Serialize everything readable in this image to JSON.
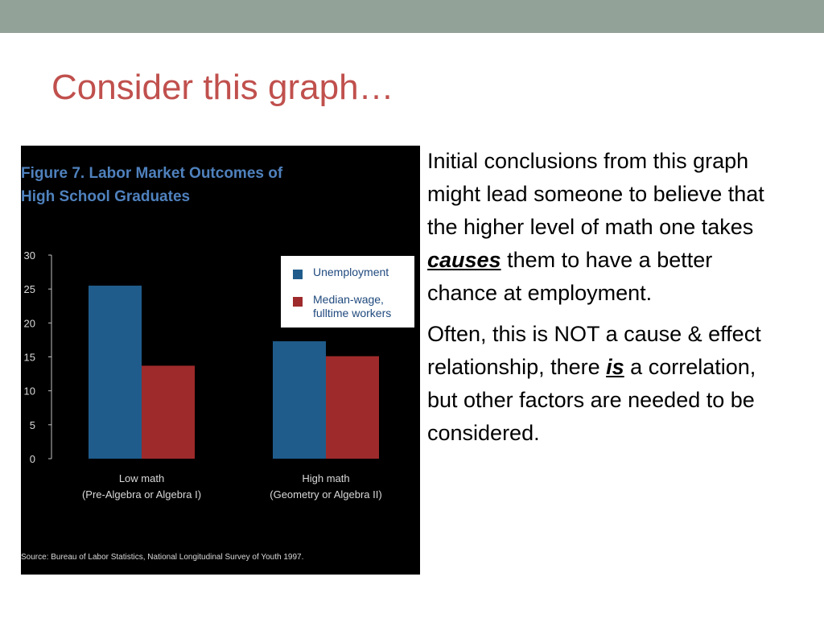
{
  "slide": {
    "title": "Consider this graph…",
    "accent_color": "#c0504d",
    "bar_color": "#93a299"
  },
  "body": {
    "p1_before": "Initial conclusions from this graph might lead someone to believe that the higher level of math one takes ",
    "p1_emph": "causes",
    "p1_after": " them to have a better chance at employment.",
    "p2_before": "Often, this is NOT a cause & effect relationship, there ",
    "p2_emph": "is",
    "p2_after": " a correlation, but other factors are needed to be considered."
  },
  "chart_data": {
    "type": "bar",
    "title_line1": "Figure 7. Labor Market Outcomes of",
    "title_line2": "High School  Graduates",
    "categories": [
      {
        "line1": "Low math",
        "line2": "(Pre-Algebra or Algebra I)"
      },
      {
        "line1": "High math",
        "line2": "(Geometry or Algebra II)"
      }
    ],
    "series": [
      {
        "name": "Unemployment",
        "color": "#1f5c8b",
        "values": [
          25.5,
          17.3
        ]
      },
      {
        "name": "Median-wage, fulltime workers",
        "color": "#9e2a2b",
        "values": [
          13.7,
          15.1
        ]
      }
    ],
    "legend_labels": [
      {
        "line1": "Unemployment",
        "line2": ""
      },
      {
        "line1": "Median-wage,",
        "line2": "fulltime workers"
      }
    ],
    "yticks": [
      "0",
      "5",
      "10",
      "15",
      "20",
      "25",
      "30"
    ],
    "ylim": [
      0,
      30
    ],
    "grid": false,
    "legend_position": "top-right",
    "source": "Source: Bureau of Labor Statistics, National Longitudinal Survey of Youth 1997."
  }
}
